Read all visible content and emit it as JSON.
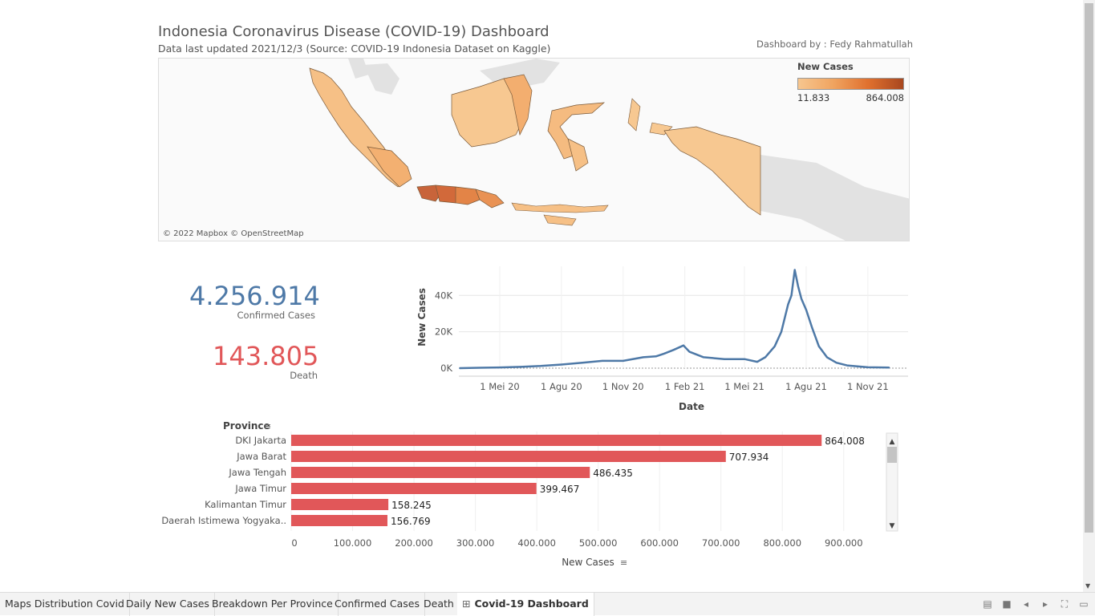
{
  "header": {
    "title": "Indonesia Coronavirus Disease (COVID-19) Dashboard",
    "subtitle": "Data last updated 2021/12/3 (Source: COVID-19 Indonesia Dataset on Kaggle)",
    "author": "Dashboard by : Fedy Rahmatullah"
  },
  "map": {
    "credit": "© 2022 Mapbox © OpenStreetMap",
    "legend": {
      "title": "New Cases",
      "min": "11.833",
      "max": "864.008"
    }
  },
  "kpis": {
    "confirmed": {
      "value": "4.256.914",
      "label": "Confirmed Cases",
      "color": "#4e79a7"
    },
    "death": {
      "value": "143.805",
      "label": "Death",
      "color": "#e15759"
    }
  },
  "chart_data": [
    {
      "type": "line",
      "xlabel": "Date",
      "ylabel": "New Cases",
      "x_ticks": [
        "1 Mei 20",
        "1 Agu 20",
        "1 Nov 20",
        "1 Feb 21",
        "1 Mei 21",
        "1 Agu 21",
        "1 Nov 21"
      ],
      "y_ticks": [
        "0K",
        "20K",
        "40K"
      ],
      "ylim": [
        0,
        56000
      ],
      "color": "#4e79a7",
      "series": [
        {
          "x": [
            "2020-03-02",
            "2020-04-01",
            "2020-05-01",
            "2020-06-01",
            "2020-07-01",
            "2020-08-01",
            "2020-09-01",
            "2020-10-01",
            "2020-11-01",
            "2020-12-01",
            "2020-12-20",
            "2021-01-01",
            "2021-01-15",
            "2021-01-30",
            "2021-02-08",
            "2021-03-01",
            "2021-04-01",
            "2021-05-01",
            "2021-05-20",
            "2021-06-01",
            "2021-06-15",
            "2021-06-25",
            "2021-07-05",
            "2021-07-10",
            "2021-07-15",
            "2021-07-20",
            "2021-07-25",
            "2021-08-01",
            "2021-08-10",
            "2021-08-20",
            "2021-09-01",
            "2021-09-15",
            "2021-10-01",
            "2021-11-01",
            "2021-12-03"
          ],
          "values": [
            0,
            200,
            400,
            700,
            1200,
            2000,
            3000,
            4000,
            4000,
            6000,
            6500,
            8000,
            10000,
            12500,
            9000,
            6000,
            5000,
            5000,
            3500,
            6000,
            12000,
            20000,
            35000,
            40000,
            54000,
            45000,
            38000,
            32000,
            22000,
            12000,
            6000,
            3000,
            1500,
            500,
            300
          ]
        }
      ]
    },
    {
      "type": "bar",
      "orientation": "horizontal",
      "title": "",
      "ylabel": "Province",
      "xlabel": "New Cases",
      "xlim": [
        0,
        980000
      ],
      "x_ticks": [
        "0",
        "100.000",
        "200.000",
        "300.000",
        "400.000",
        "500.000",
        "600.000",
        "700.000",
        "800.000",
        "900.000"
      ],
      "color": "#e15759",
      "categories": [
        "DKI Jakarta",
        "Jawa Barat",
        "Jawa Tengah",
        "Jawa Timur",
        "Kalimantan Timur",
        "Daerah Istimewa Yogyaka.."
      ],
      "values": [
        864008,
        707934,
        486435,
        399467,
        158245,
        156769
      ],
      "value_labels": [
        "864.008",
        "707.934",
        "486.435",
        "399.467",
        "158.245",
        "156.769"
      ]
    }
  ],
  "tabs": [
    {
      "label": "Maps Distribution Covid"
    },
    {
      "label": "Daily New Cases"
    },
    {
      "label": "Breakdown Per Province"
    },
    {
      "label": "Confirmed Cases"
    },
    {
      "label": "Death"
    },
    {
      "label": "Covid-19 Dashboard",
      "active": true,
      "icon": "dashboard-grid-icon"
    }
  ],
  "toolbar_icons": [
    "presentation-icon",
    "stop-icon",
    "prev-sheet-icon",
    "next-sheet-icon",
    "fit-icon",
    "device-preview-icon"
  ]
}
